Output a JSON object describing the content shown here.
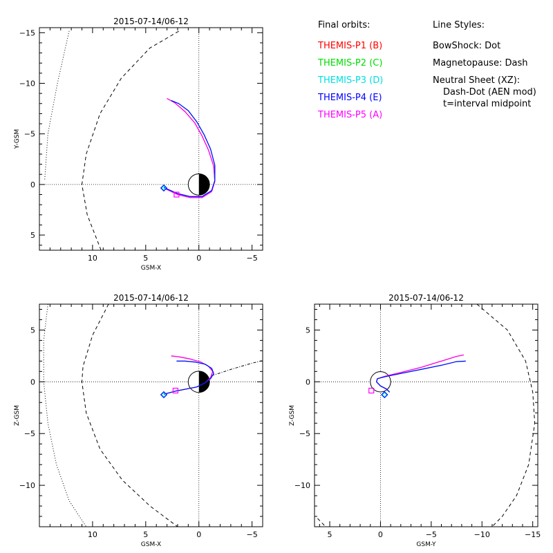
{
  "legend": {
    "orbits_title": "Final orbits:",
    "probes": [
      {
        "label": "THEMIS-P1 (B)",
        "color": "#ff0000"
      },
      {
        "label": "THEMIS-P2 (C)",
        "color": "#00dd00"
      },
      {
        "label": "THEMIS-P3 (D)",
        "color": "#00e0e0"
      },
      {
        "label": "THEMIS-P4 (E)",
        "color": "#0000ff"
      },
      {
        "label": "THEMIS-P5 (A)",
        "color": "#ff00ff"
      }
    ],
    "styles_title": "Line Styles:",
    "styles": [
      "BowShock: Dot",
      "Magnetopause: Dash",
      "Neutral Sheet (XZ):",
      "Dash-Dot (AEN mod)",
      "t=interval midpoint"
    ]
  },
  "chart_data": [
    {
      "type": "line",
      "title": "2015-07-14/06-12",
      "xlabel": "GSM-X",
      "ylabel": "Y-GSM",
      "xlim": [
        15,
        -6
      ],
      "ylim": [
        6.5,
        -15.5
      ],
      "xticks": [
        10,
        5,
        0,
        -5
      ],
      "yticks": [
        5,
        0,
        -5,
        -10,
        -15
      ],
      "earth": {
        "radius": 1,
        "night_side": "negative-x"
      },
      "bow_shock": [
        [
          14.5,
          -0.5
        ],
        [
          14.2,
          -5
        ],
        [
          13.3,
          -10
        ],
        [
          12.2,
          -15.2
        ]
      ],
      "magnetopause": [
        [
          9.2,
          6.5
        ],
        [
          10.5,
          3
        ],
        [
          11,
          0
        ],
        [
          10.6,
          -3
        ],
        [
          9.3,
          -7
        ],
        [
          7.3,
          -10.5
        ],
        [
          4.6,
          -13.5
        ],
        [
          1.8,
          -15.2
        ]
      ],
      "series": [
        {
          "probe": 0,
          "x": [
            3.2,
            2,
            0.8,
            -0.3,
            -1.2,
            -1.5,
            -1.4,
            -0.9,
            -0.3,
            0.4,
            1.3,
            2.3,
            3.0
          ],
          "y": [
            0.4,
            1.0,
            1.3,
            1.3,
            0.7,
            -0.3,
            -1.8,
            -3.4,
            -4.8,
            -6.1,
            -7.2,
            -8.1,
            -8.5
          ]
        },
        {
          "probe": 4,
          "x": [
            3.2,
            2,
            0.8,
            -0.3,
            -1.2,
            -1.5,
            -1.4,
            -0.9,
            -0.3,
            0.4,
            1.3,
            2.3,
            3.0
          ],
          "y": [
            0.4,
            1.0,
            1.3,
            1.3,
            0.7,
            -0.3,
            -1.8,
            -3.4,
            -4.8,
            -6.1,
            -7.2,
            -8.1,
            -8.5
          ]
        },
        {
          "probe": 2,
          "x": [
            3.3,
            2,
            0.8,
            -0.3,
            -1.2,
            -1.5,
            -1.5,
            -1.1,
            -0.5,
            0.2,
            1.0,
            1.9,
            2.6
          ],
          "y": [
            0.3,
            0.9,
            1.2,
            1.2,
            0.6,
            -0.4,
            -1.9,
            -3.5,
            -4.9,
            -6.2,
            -7.3,
            -8.0,
            -8.3
          ]
        },
        {
          "probe": 3,
          "x": [
            3.3,
            2,
            0.8,
            -0.3,
            -1.2,
            -1.5,
            -1.5,
            -1.1,
            -0.5,
            0.2,
            1.0,
            1.9,
            2.6
          ],
          "y": [
            0.3,
            0.9,
            1.2,
            1.2,
            0.6,
            -0.4,
            -1.9,
            -3.5,
            -4.9,
            -6.2,
            -7.3,
            -8.0,
            -8.3
          ]
        }
      ],
      "markers": {
        "diamond": {
          "x": 3.3,
          "y": 0.35,
          "color": "#00e0e0",
          "edge": "#0000ff"
        },
        "square": {
          "x": 2.1,
          "y": 1.0,
          "color": "#ff00ff"
        }
      }
    },
    {
      "type": "line",
      "title": "2015-07-14/06-12",
      "xlabel": "GSM-X",
      "ylabel": "Z-GSM",
      "xlim": [
        15,
        -6
      ],
      "ylim": [
        -14,
        7.5
      ],
      "xticks": [
        10,
        5,
        0,
        -5
      ],
      "yticks": [
        5,
        0,
        -5,
        -10
      ],
      "earth": {
        "radius": 1,
        "night_side": "negative-x"
      },
      "bow_shock": [
        [
          14.2,
          7.5
        ],
        [
          14.6,
          4
        ],
        [
          14.6,
          0
        ],
        [
          14.2,
          -4
        ],
        [
          13.4,
          -8
        ],
        [
          12.2,
          -11.5
        ],
        [
          10.6,
          -14
        ]
      ],
      "magnetopause": [
        [
          8.5,
          7.5
        ],
        [
          10,
          4.5
        ],
        [
          10.9,
          1.5
        ],
        [
          11,
          0
        ],
        [
          10.6,
          -3
        ],
        [
          9.3,
          -6.5
        ],
        [
          7.2,
          -9.5
        ],
        [
          4.6,
          -12
        ],
        [
          2,
          -14
        ]
      ],
      "neutral_sheet": [
        [
          -1.2,
          0.6
        ],
        [
          -2,
          0.85
        ],
        [
          -3,
          1.2
        ],
        [
          -4,
          1.5
        ],
        [
          -5,
          1.8
        ],
        [
          -6,
          2.05
        ]
      ],
      "series": [
        {
          "probe": 0,
          "x": [
            3.3,
            2.2,
            1.2,
            0.2,
            -0.6,
            -1.1,
            -1.3,
            -0.9,
            -0.2,
            0.8,
            1.8,
            2.6
          ],
          "y": [
            -1.2,
            -0.9,
            -0.7,
            -0.5,
            -0.1,
            0.4,
            1.0,
            1.5,
            1.9,
            2.2,
            2.4,
            2.5
          ]
        },
        {
          "probe": 4,
          "x": [
            3.3,
            2.2,
            1.2,
            0.2,
            -0.6,
            -1.1,
            -1.3,
            -0.9,
            -0.2,
            0.8,
            1.8,
            2.6
          ],
          "y": [
            -1.2,
            -0.9,
            -0.7,
            -0.5,
            -0.1,
            0.4,
            1.0,
            1.5,
            1.9,
            2.2,
            2.4,
            2.5
          ]
        },
        {
          "probe": 2,
          "x": [
            3.3,
            2.2,
            1.2,
            0.2,
            -0.6,
            -1.1,
            -1.4,
            -1.2,
            -0.6,
            0.3,
            1.3,
            2.1
          ],
          "y": [
            -1.2,
            -0.9,
            -0.7,
            -0.5,
            -0.1,
            0.3,
            0.8,
            1.3,
            1.7,
            1.9,
            2.0,
            2.0
          ]
        },
        {
          "probe": 3,
          "x": [
            3.3,
            2.2,
            1.2,
            0.2,
            -0.6,
            -1.1,
            -1.4,
            -1.2,
            -0.6,
            0.3,
            1.3,
            2.1
          ],
          "y": [
            -1.2,
            -0.9,
            -0.7,
            -0.5,
            -0.1,
            0.3,
            0.8,
            1.3,
            1.7,
            1.9,
            2.0,
            2.0
          ]
        }
      ],
      "markers": {
        "diamond": {
          "x": 3.3,
          "y": -1.25,
          "color": "#00e0e0",
          "edge": "#0000ff"
        },
        "square": {
          "x": 2.2,
          "y": -0.85,
          "color": "#ff00ff"
        }
      }
    },
    {
      "type": "line",
      "title": "2015-07-14/06-12",
      "xlabel": "GSM-Y",
      "ylabel": "Z-GSM",
      "xlim": [
        6.5,
        -15.5
      ],
      "ylim": [
        -14,
        7.5
      ],
      "xticks": [
        5,
        0,
        -5,
        -10,
        -15
      ],
      "yticks": [
        5,
        0,
        -5,
        -10
      ],
      "earth": {
        "radius": 1,
        "night_side": "none"
      },
      "magnetopause": [
        [
          -9.5,
          7.5
        ],
        [
          -12.5,
          5
        ],
        [
          -14.3,
          2
        ],
        [
          -15,
          -1
        ],
        [
          -15.2,
          -4
        ],
        [
          -14.6,
          -8
        ],
        [
          -13.4,
          -11
        ],
        [
          -12,
          -13
        ],
        [
          -11,
          -14
        ]
      ],
      "magnetopause_left": [
        [
          6.2,
          -13.2
        ],
        [
          5.4,
          -14
        ]
      ],
      "series": [
        {
          "probe": 0,
          "x": [
            -0.9,
            -0.6,
            0,
            0.4,
            0.3,
            -0.5,
            -2,
            -4,
            -6,
            -7.5,
            -8.2
          ],
          "y": [
            -1.0,
            -0.7,
            -0.4,
            0,
            0.3,
            0.55,
            0.9,
            1.4,
            2.0,
            2.45,
            2.6
          ]
        },
        {
          "probe": 4,
          "x": [
            -0.9,
            -0.6,
            0,
            0.4,
            0.3,
            -0.5,
            -2,
            -4,
            -6,
            -7.5,
            -8.2
          ],
          "y": [
            -1.0,
            -0.7,
            -0.4,
            0,
            0.3,
            0.55,
            0.9,
            1.4,
            2.0,
            2.45,
            2.6
          ]
        },
        {
          "probe": 2,
          "x": [
            -0.9,
            -0.6,
            0,
            0.4,
            0.3,
            -0.5,
            -2,
            -4,
            -6,
            -7.5,
            -8.4
          ],
          "y": [
            -1.0,
            -0.7,
            -0.4,
            0,
            0.3,
            0.5,
            0.8,
            1.2,
            1.6,
            1.95,
            2.0
          ]
        },
        {
          "probe": 3,
          "x": [
            -0.9,
            -0.6,
            0,
            0.4,
            0.3,
            -0.5,
            -2,
            -4,
            -6,
            -7.5,
            -8.4
          ],
          "y": [
            -1.0,
            -0.7,
            -0.4,
            0,
            0.3,
            0.5,
            0.8,
            1.2,
            1.6,
            1.95,
            2.0
          ]
        }
      ],
      "markers": {
        "diamond": {
          "x": -0.4,
          "y": -1.25,
          "color": "#00e0e0",
          "edge": "#0000ff"
        },
        "square": {
          "x": 0.9,
          "y": -0.85,
          "color": "#ff00ff"
        }
      }
    }
  ]
}
